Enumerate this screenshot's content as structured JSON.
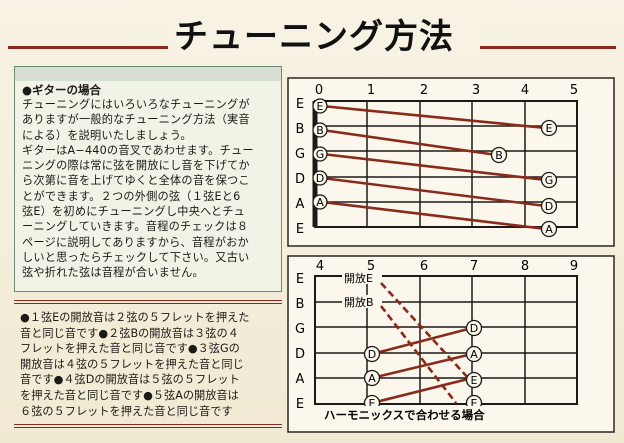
{
  "title": "チューニング方法",
  "section_heading": "●ギターの場合",
  "body_lines": [
    "チューニングにはいろいろなチューニングが",
    "ありますが一般的なチューニング方法（実音",
    "による）を説明いたしましょう。",
    "ギターはA−440の音叉であわせます。チュー",
    "ニングの際は常に弦を開放にし音を下げてか",
    "ら次第に音を上げてゆくと全体の音を保つこ",
    "とができます。２つの外側の弦（１弦Eと6",
    "弦E）を初めにチューニングし中央へとチュ",
    "ーニングしていきます。音程のチェックは８",
    "ページに説明してありますから、音程がおか",
    "しいと思ったらチェックして下さい。又古い",
    "弦や折れた弦は音程が合いません。"
  ],
  "notes_lines": [
    "●１弦Eの開放音は２弦の５フレットを押えた",
    "音と同じ音です●２弦Bの開放音は３弦の４",
    "フレットを押えた音と同じ音です●３弦Gの",
    "開放音は４弦の５フレットを押えた音と同じ",
    "音です●４弦Dの開放音は５弦の５フレット",
    "を押えた音と同じ音です●５弦Aの開放音は",
    "６弦の５フレットを押えた音と同じ音です"
  ],
  "diagram_top": {
    "fret_numbers": [
      "0",
      "1",
      "2",
      "3",
      "4",
      "5"
    ],
    "string_labels": [
      "E",
      "B",
      "G",
      "D",
      "A",
      "E"
    ],
    "open_markers": [
      "E",
      "B",
      "G",
      "D",
      "A"
    ],
    "fretted_markers": [
      {
        "note": "E",
        "string": 2,
        "fret": 4.5
      },
      {
        "note": "B",
        "string": 3,
        "fret": 3.5
      },
      {
        "note": "G",
        "string": 4,
        "fret": 4.5
      },
      {
        "note": "D",
        "string": 5,
        "fret": 4.5
      },
      {
        "note": "A",
        "string": 6,
        "fret": 4.5
      }
    ]
  },
  "diagram_bottom": {
    "fret_numbers": [
      "4",
      "5",
      "6",
      "7",
      "8",
      "9"
    ],
    "string_labels": [
      "E",
      "B",
      "G",
      "D",
      "A",
      "E"
    ],
    "open_label_e": "開放E",
    "open_label_b": "開放B",
    "markers": [
      "D",
      "A",
      "E",
      "D",
      "A",
      "E",
      "D",
      "A",
      "E"
    ],
    "caption": "ハーモニックスで合わせる場合"
  },
  "colors": {
    "accent": "#8a2a1a",
    "board": "#fbf7ec",
    "frame": "#2b2622"
  }
}
